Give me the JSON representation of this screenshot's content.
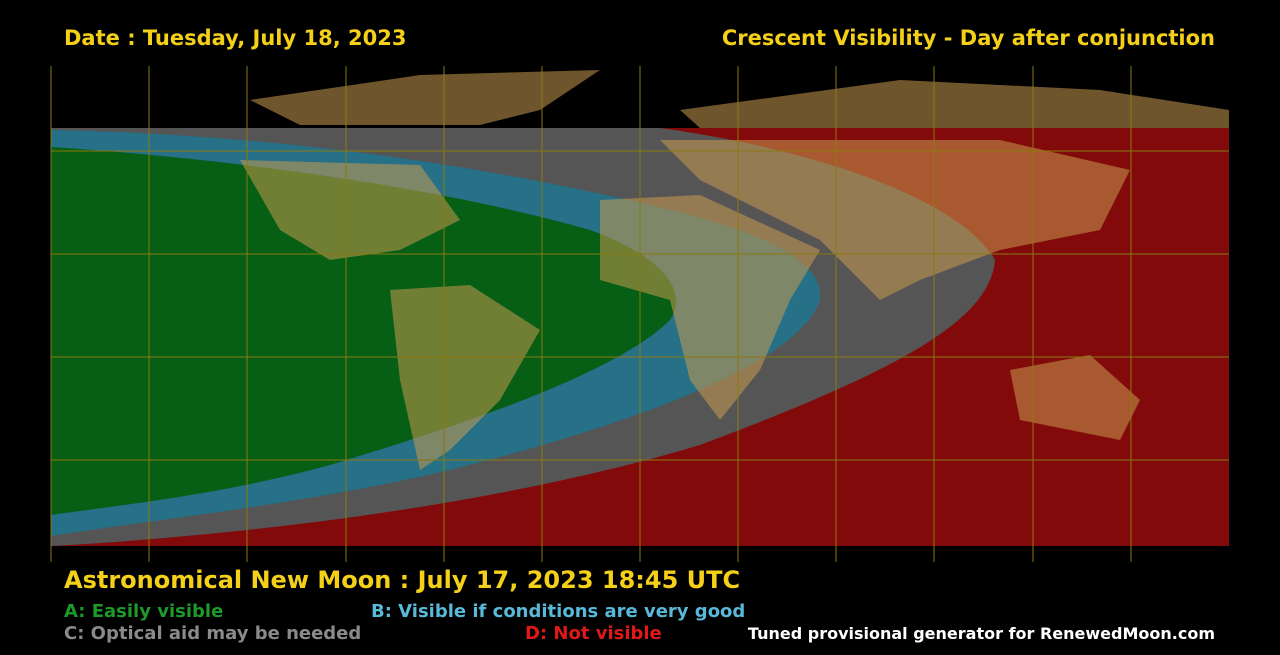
{
  "header": {
    "date": "Date : Tuesday, July 18, 2023",
    "title": "Crescent Visibility - Day after conjunction"
  },
  "footer": {
    "new_moon": "Astronomical New Moon : July 17, 2023 18:45 UTC",
    "legend": [
      "A: Easily visible",
      "B: Visible if conditions are very good",
      "C: Optical aid may be needed",
      "D: Not visible"
    ],
    "credit": "Tuned provisional generator for RenewedMoon.com"
  }
}
